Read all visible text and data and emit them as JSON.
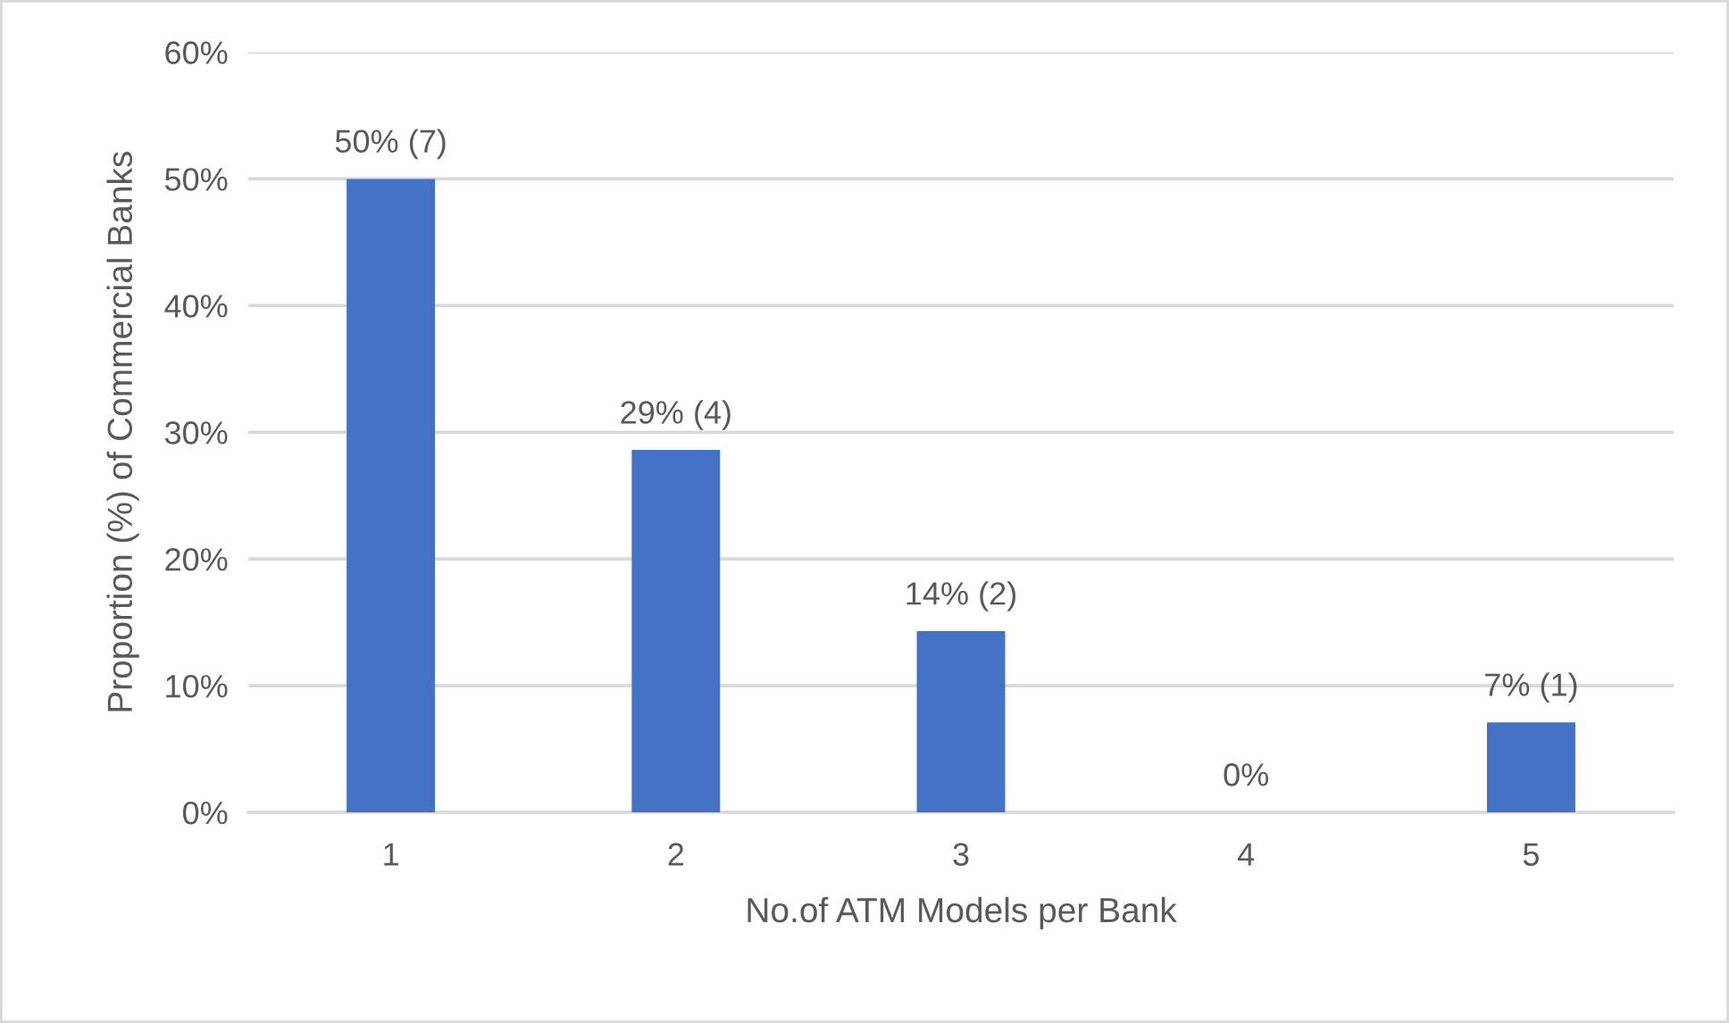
{
  "chart_data": {
    "type": "bar",
    "xlabel": "No.of ATM Models per Bank",
    "ylabel": "Proportion (%) of Commercial Banks",
    "categories": [
      "1",
      "2",
      "3",
      "4",
      "5"
    ],
    "values": [
      50,
      28.6,
      14.3,
      0,
      7.1
    ],
    "value_labels": [
      "50% (7)",
      "29% (4)",
      "14% (2)",
      "0%",
      "7% (1)"
    ],
    "color": "#4472c4",
    "ylim": [
      0,
      60
    ],
    "yticks": [
      {
        "value": 0,
        "label": "0%"
      },
      {
        "value": 10,
        "label": "10%"
      },
      {
        "value": 20,
        "label": "20%"
      },
      {
        "value": 30,
        "label": "30%"
      },
      {
        "value": 40,
        "label": "40%"
      },
      {
        "value": 50,
        "label": "50%"
      },
      {
        "value": 60,
        "label": "60%"
      }
    ],
    "grid": "y"
  }
}
